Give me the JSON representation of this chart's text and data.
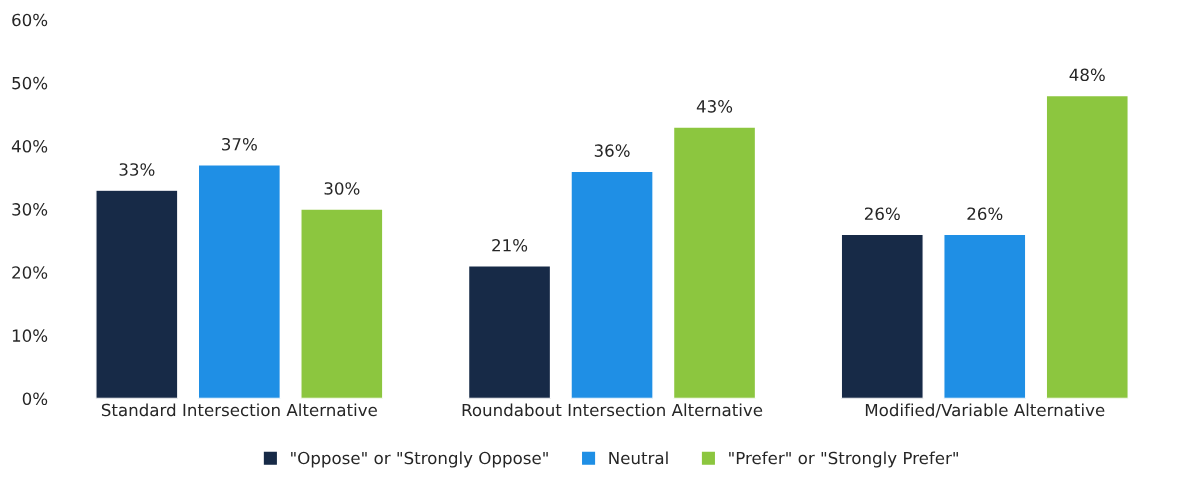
{
  "chart_data": {
    "type": "bar",
    "categories": [
      "Standard Intersection Alternative",
      "Roundabout Intersection Alternative",
      "Modified/Variable Alternative"
    ],
    "series": [
      {
        "name": "\"Oppose\" or \"Strongly Oppose\"",
        "color": "#172a47",
        "values": [
          33,
          21,
          26
        ],
        "value_labels": [
          "33%",
          "21%",
          "26%"
        ]
      },
      {
        "name": "Neutral",
        "color": "#1f8fe5",
        "values": [
          37,
          36,
          26
        ],
        "value_labels": [
          "37%",
          "36%",
          "26%"
        ]
      },
      {
        "name": "\"Prefer\" or \"Strongly Prefer\"",
        "color": "#8cc63f",
        "values": [
          30,
          43,
          48
        ],
        "value_labels": [
          "30%",
          "43%",
          "48%"
        ]
      }
    ],
    "ylim": [
      0,
      60
    ],
    "yticks": [
      {
        "value": 0,
        "label": "0%"
      },
      {
        "value": 10,
        "label": "10%"
      },
      {
        "value": 20,
        "label": "20%"
      },
      {
        "value": 30,
        "label": "30%"
      },
      {
        "value": 40,
        "label": "40%"
      },
      {
        "value": 50,
        "label": "50%"
      },
      {
        "value": 60,
        "label": "60%"
      }
    ],
    "legend": "bottom"
  }
}
